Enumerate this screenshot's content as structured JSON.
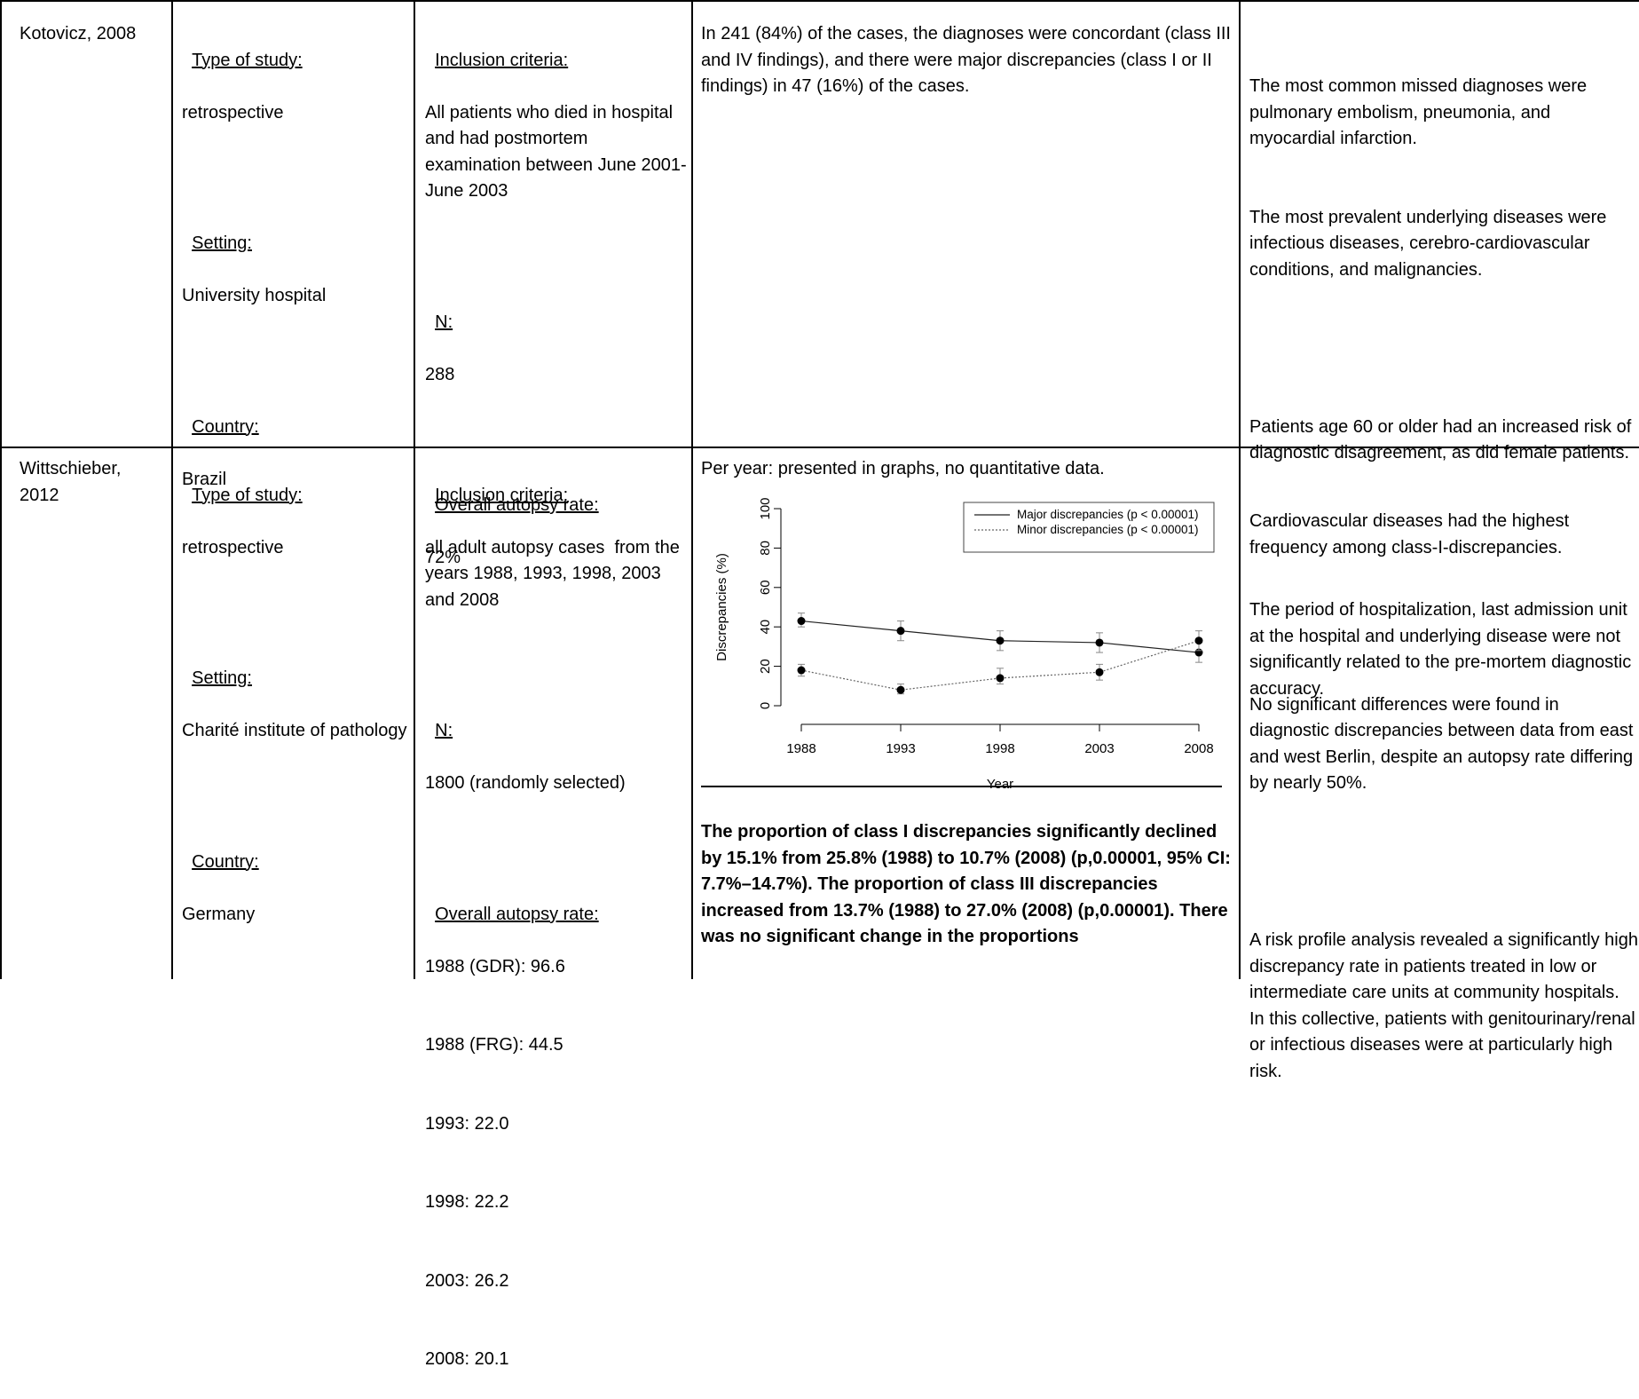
{
  "rows": [
    {
      "author": "Kotovicz, 2008",
      "study_type_label": "Type of study:",
      "study_type": "retrospective",
      "setting_label": "Setting:",
      "setting": "University hospital",
      "country_label": "Country:",
      "country": "Brazil",
      "inclusion_label": "Inclusion criteria:",
      "inclusion": "All patients who died in hospital and had postmortem examination between June 2001-June 2003",
      "n_label": "N:",
      "n": "288",
      "rate_label": "Overall autopsy rate:",
      "rate_lines": [
        "72%"
      ],
      "results": "In 241 (84%) of the cases, the diagnoses were concordant (class III and IV findings), and there were major discrepancies (class I or II findings) in 47 (16%) of the cases.",
      "comments": [
        "The most common missed diagnoses were pulmonary embolism, pneumonia, and myocardial infarction.",
        "The most prevalent underlying diseases were infectious diseases, cerebro-cardiovascular conditions, and malignancies.",
        "Patients age 60 or older had an increased risk of diagnostic disagreement, as did female patients.",
        "The period of hospitalization, last admission unit at the hospital and underlying disease were not significantly related to the pre-mortem diagnostic accuracy."
      ]
    },
    {
      "author": "Wittschieber, 2012",
      "study_type_label": "Type of study:",
      "study_type": "retrospective",
      "setting_label": "Setting:",
      "setting": "Charité institute of pathology",
      "country_label": "Country:",
      "country": "Germany",
      "inclusion_label": "Inclusion criteria:",
      "inclusion": "all adult autopsy cases  from the years 1988, 1993, 1998, 2003 and 2008",
      "n_label": "N:",
      "n": "1800 (randomly selected)",
      "rate_label": "Overall autopsy rate:",
      "rate_lines": [
        "1988 (GDR): 96.6",
        "1988 (FRG): 44.5",
        "1993: 22.0",
        "1998: 22.2",
        "2003: 26.2",
        "2008: 20.1"
      ],
      "results_intro": "Per year: presented in graphs, no quantitative data.",
      "results_bold": "The proportion of class I discrepancies significantly declined by 15.1% from 25.8% (1988) to 10.7% (2008) (p,0.00001, 95% CI: 7.7%–14.7%). The proportion of class III discrepancies increased from 13.7% (1988) to 27.0% (2008) (p,0.00001). There was no significant change in the proportions",
      "comments": [
        "Cardiovascular diseases had the highest frequency among class-I-discrepancies.",
        "No significant differences were found in diagnostic discrepancies between data from east and west Berlin, despite an autopsy rate differing by nearly 50%.",
        "A risk profile analysis revealed a significantly high discrepancy rate in patients treated in low or intermediate care units at community hospitals. In this collective, patients with genitourinary/renal or infectious diseases were at particularly high risk."
      ]
    }
  ],
  "chart_data": {
    "type": "line",
    "x": [
      1988,
      1993,
      1998,
      2003,
      2008
    ],
    "xlabel": "Year",
    "ylabel": "Discrepancies (%)",
    "ylim": [
      0,
      100
    ],
    "yticks": [
      0,
      20,
      40,
      60,
      80,
      100
    ],
    "legend_position": "top-right",
    "series": [
      {
        "name": "Major discrepancies (p < 0.00001)",
        "style": "solid",
        "values": [
          43,
          38,
          33,
          32,
          27
        ],
        "err_low": [
          40,
          33,
          28,
          27,
          22
        ],
        "err_high": [
          47,
          43,
          38,
          37,
          33
        ]
      },
      {
        "name": "Minor discrepancies (p < 0.00001)",
        "style": "dotted",
        "values": [
          18,
          8,
          14,
          17,
          33
        ],
        "err_low": [
          15,
          6,
          11,
          13,
          28
        ],
        "err_high": [
          21,
          11,
          19,
          21,
          38
        ]
      }
    ]
  }
}
